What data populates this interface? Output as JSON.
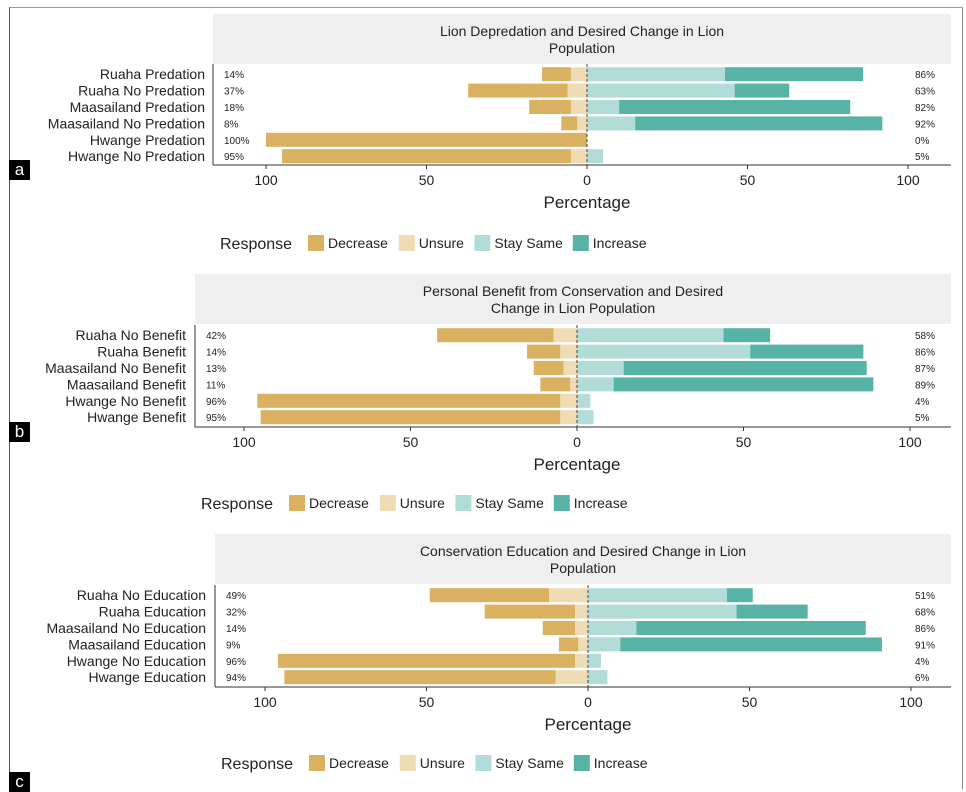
{
  "chart_data": [
    {
      "panel_label": "a",
      "type": "bar",
      "orientation": "horizontal",
      "stacked": true,
      "diverging": true,
      "title": "Lion Depredation and Desired Change in Lion Population",
      "title_lines": [
        "Lion Depredation and Desired Change in Lion",
        "Population"
      ],
      "xlabel": "Percentage",
      "xticks": [
        "100",
        "50",
        "0",
        "50",
        "100"
      ],
      "xlim": [
        -100,
        100
      ],
      "categories": [
        "Ruaha Predation",
        "Ruaha No Predation",
        "Maasailand Predation",
        "Maasailand No Predation",
        "Hwange Predation",
        "Hwange No Predation"
      ],
      "left_labels": [
        "14%",
        "37%",
        "18%",
        "8%",
        "100%",
        "95%"
      ],
      "right_labels": [
        "86%",
        "63%",
        "82%",
        "92%",
        "0%",
        "5%"
      ],
      "series": [
        {
          "name": "Decrease",
          "values": [
            9,
            31,
            13,
            5,
            100,
            90
          ]
        },
        {
          "name": "Unsure",
          "values": [
            5,
            6,
            5,
            3,
            0,
            5
          ]
        },
        {
          "name": "Stay Same",
          "values": [
            43,
            46,
            10,
            15,
            0,
            5
          ]
        },
        {
          "name": "Increase",
          "values": [
            43,
            17,
            72,
            77,
            0,
            0
          ]
        }
      ],
      "legend": {
        "title": "Response",
        "position": "bottom"
      }
    },
    {
      "panel_label": "b",
      "type": "bar",
      "orientation": "horizontal",
      "stacked": true,
      "diverging": true,
      "title": "Personal Benefit from Conservation and Desired Change in Lion Population",
      "title_lines": [
        "Personal Benefit from Conservation and Desired",
        "Change in Lion Population"
      ],
      "xlabel": "Percentage",
      "xticks": [
        "100",
        "50",
        "0",
        "50",
        "100"
      ],
      "xlim": [
        -100,
        100
      ],
      "categories": [
        "Ruaha No Benefit",
        "Ruaha Benefit",
        "Maasailand No Benefit",
        "Maasailand Benefit",
        "Hwange No Benefit",
        "Hwange Benefit"
      ],
      "left_labels": [
        "42%",
        "14%",
        "13%",
        "11%",
        "96%",
        "95%"
      ],
      "right_labels": [
        "58%",
        "86%",
        "87%",
        "89%",
        "4%",
        "5%"
      ],
      "series": [
        {
          "name": "Decrease",
          "values": [
            35,
            10,
            9,
            9,
            91,
            90
          ]
        },
        {
          "name": "Unsure",
          "values": [
            7,
            5,
            4,
            2,
            5,
            5
          ]
        },
        {
          "name": "Stay Same",
          "values": [
            44,
            52,
            14,
            11,
            4,
            5
          ]
        },
        {
          "name": "Increase",
          "values": [
            14,
            34,
            73,
            78,
            0,
            0
          ]
        }
      ],
      "legend": {
        "title": "Response",
        "position": "bottom"
      }
    },
    {
      "panel_label": "c",
      "type": "bar",
      "orientation": "horizontal",
      "stacked": true,
      "diverging": true,
      "title": "Conservation Education and Desired Change in Lion Population",
      "title_lines": [
        "Conservation Education and Desired Change in Lion",
        "Population"
      ],
      "xlabel": "Percentage",
      "xticks": [
        "100",
        "50",
        "0",
        "50",
        "100"
      ],
      "xlim": [
        -100,
        100
      ],
      "categories": [
        "Ruaha No Education",
        "Ruaha Education",
        "Maasailand No Education",
        "Maasailand Education",
        "Hwange No Education",
        "Hwange Education"
      ],
      "left_labels": [
        "49%",
        "32%",
        "14%",
        "9%",
        "96%",
        "94%"
      ],
      "right_labels": [
        "51%",
        "68%",
        "86%",
        "91%",
        "4%",
        "6%"
      ],
      "series": [
        {
          "name": "Decrease",
          "values": [
            37,
            28,
            10,
            6,
            92,
            84
          ]
        },
        {
          "name": "Unsure",
          "values": [
            12,
            4,
            4,
            3,
            4,
            10
          ]
        },
        {
          "name": "Stay Same",
          "values": [
            43,
            46,
            15,
            10,
            4,
            6
          ]
        },
        {
          "name": "Increase",
          "values": [
            8,
            22,
            71,
            81,
            0,
            0
          ]
        }
      ],
      "legend": {
        "title": "Response",
        "position": "bottom"
      }
    }
  ],
  "colors": {
    "Decrease": "#d9b160",
    "Unsure": "#efdcb4",
    "Stay Same": "#b2dcd8",
    "Increase": "#57b3a6",
    "title_strip": "#efefef",
    "axis": "#333333",
    "text": "#222222"
  }
}
